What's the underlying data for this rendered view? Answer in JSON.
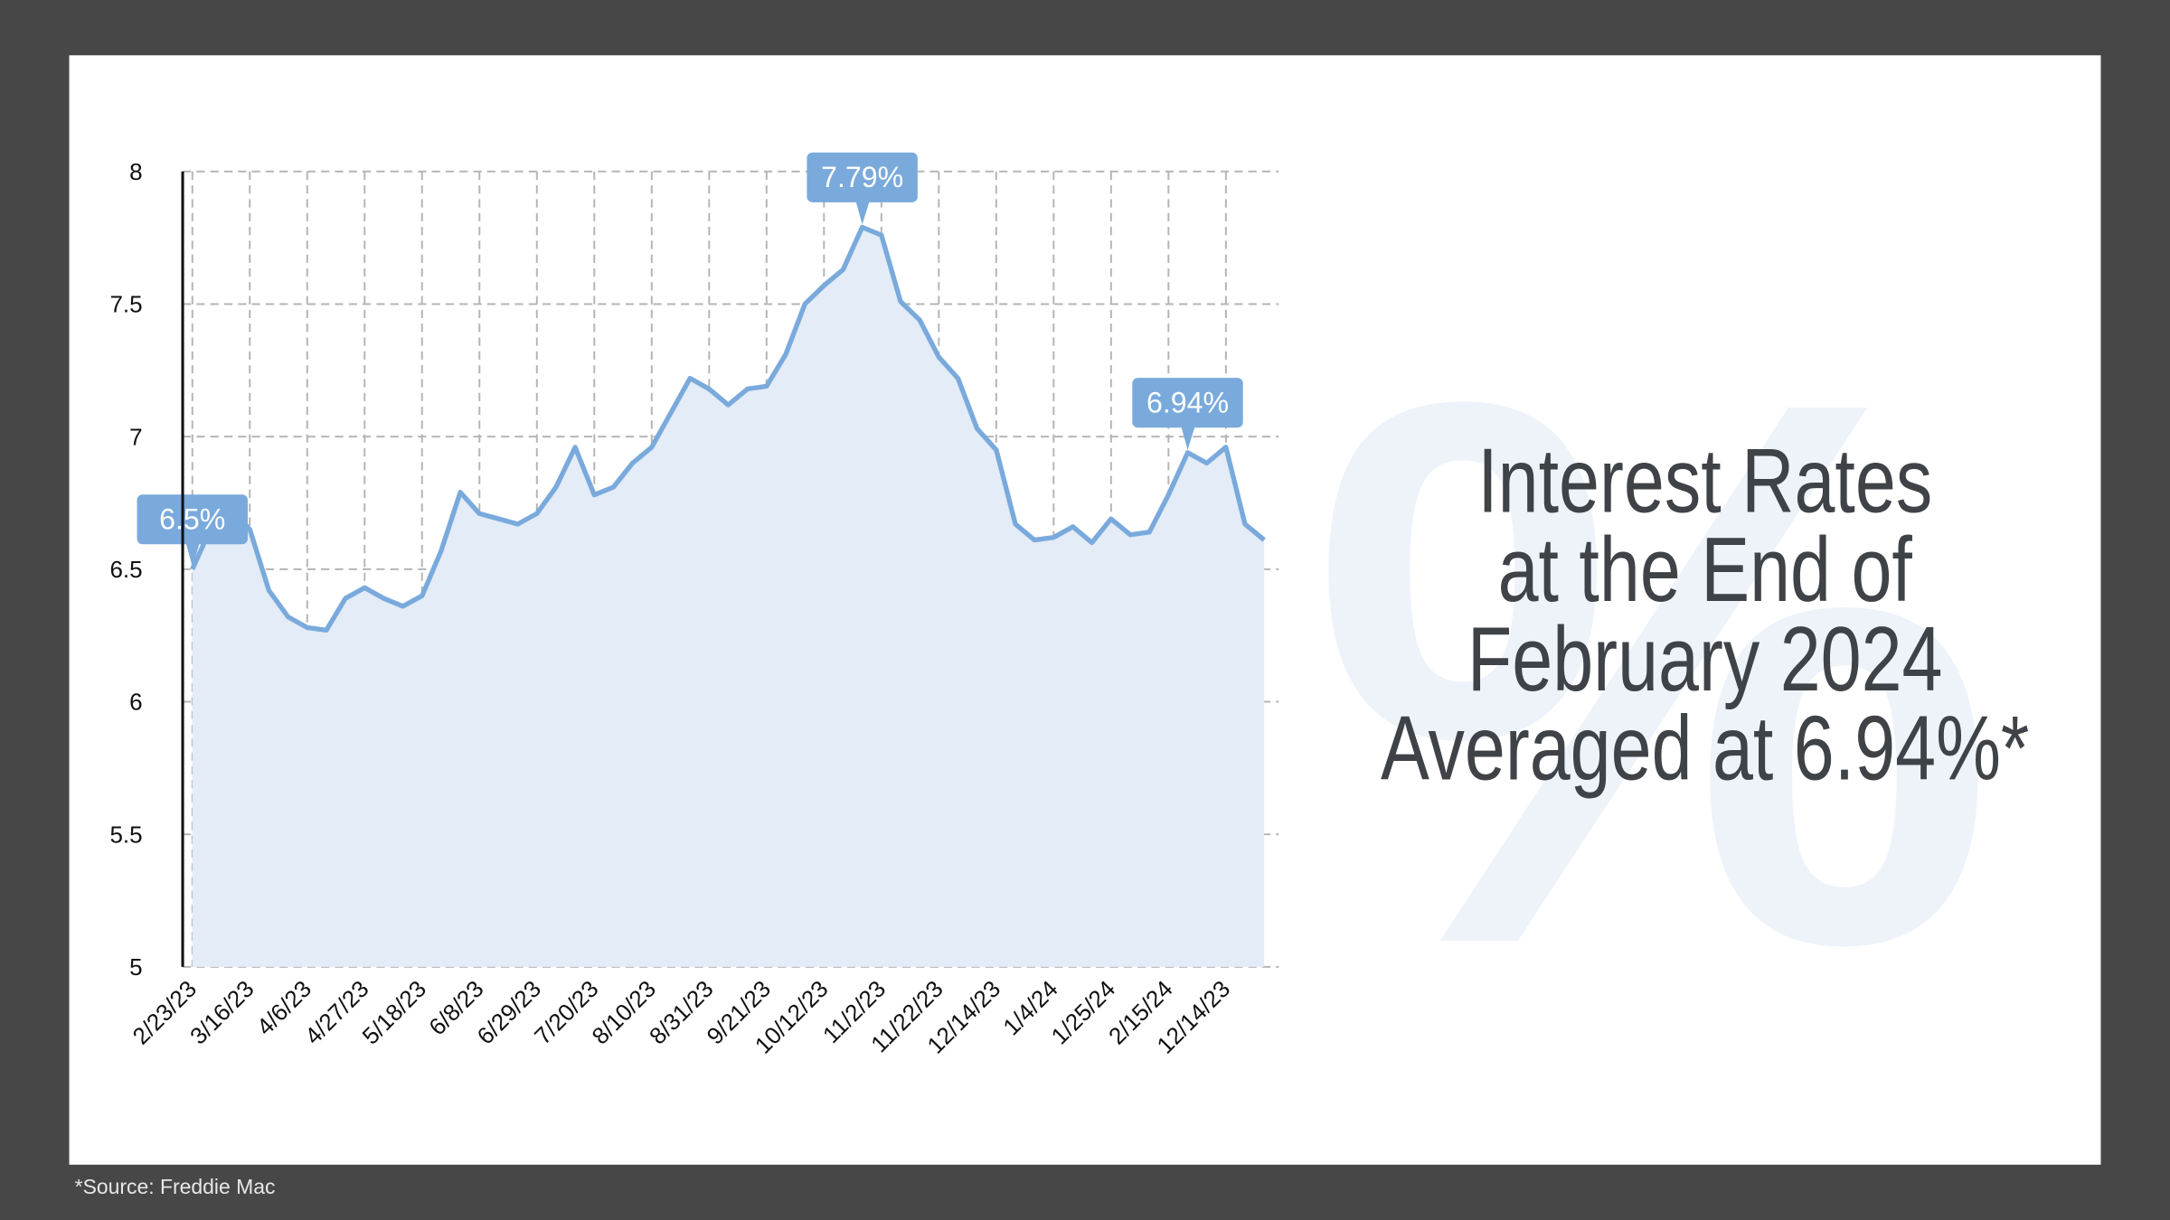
{
  "chart_data": {
    "type": "line",
    "title": [
      "Interest Rates",
      "at the End of",
      "February 2024",
      "Averaged at 6.94%*"
    ],
    "watermark": "%",
    "source": "*Source: Freddie Mac",
    "categories": [
      "2/23/23",
      null,
      null,
      "3/16/23",
      null,
      null,
      "4/6/23",
      null,
      null,
      "4/27/23",
      null,
      null,
      "5/18/23",
      null,
      null,
      "6/8/23",
      null,
      null,
      "6/29/23",
      null,
      null,
      "7/20/23",
      null,
      null,
      "8/10/23",
      null,
      null,
      "8/31/23",
      null,
      null,
      "9/21/23",
      null,
      null,
      "10/12/23",
      null,
      null,
      "11/2/23",
      null,
      null,
      "11/22/23",
      null,
      null,
      "12/14/23",
      null,
      null,
      "1/4/24",
      null,
      null,
      "1/25/24",
      null,
      null,
      "2/15/24",
      null,
      null,
      "12/14/23",
      null,
      null
    ],
    "values": [
      6.5,
      6.66,
      6.73,
      6.65,
      6.42,
      6.32,
      6.28,
      6.27,
      6.39,
      6.43,
      6.39,
      6.36,
      6.4,
      6.57,
      6.79,
      6.71,
      6.69,
      6.67,
      6.71,
      6.81,
      6.96,
      6.78,
      6.81,
      6.9,
      6.96,
      7.09,
      7.22,
      7.18,
      7.12,
      7.18,
      7.19,
      7.31,
      7.5,
      7.57,
      7.63,
      7.79,
      7.76,
      7.51,
      7.44,
      7.3,
      7.22,
      7.03,
      6.95,
      6.67,
      6.61,
      6.62,
      6.66,
      6.6,
      6.69,
      6.63,
      6.64,
      6.78,
      6.94,
      6.9,
      6.96,
      6.67,
      6.61
    ],
    "value_labels": [
      "6.5%",
      null,
      null,
      null,
      null,
      null,
      null,
      null,
      null,
      null,
      null,
      null,
      null,
      null,
      null,
      null,
      null,
      null,
      null,
      null,
      null,
      null,
      null,
      null,
      null,
      null,
      null,
      null,
      null,
      null,
      null,
      null,
      null,
      null,
      null,
      "7.79%",
      null,
      null,
      null,
      null,
      null,
      null,
      null,
      null,
      null,
      null,
      null,
      null,
      null,
      null,
      null,
      null,
      "6.94%",
      null,
      null,
      null,
      null
    ],
    "color": "#7aaadc",
    "area_color": "#e3ecf7",
    "ylim": [
      5,
      8
    ],
    "yticks": [
      5,
      5.5,
      6,
      6.5,
      7,
      7.5,
      8
    ],
    "grid": true
  }
}
